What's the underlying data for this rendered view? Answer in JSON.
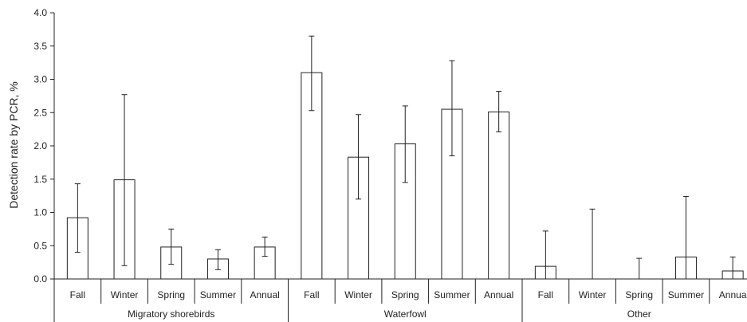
{
  "chart_data": {
    "type": "bar",
    "title": "",
    "xlabel": "",
    "ylabel": "Detection rate by PCR, %",
    "ylim": [
      0,
      4
    ],
    "yticks": [
      "0.0",
      "0.5",
      "1.0",
      "1.5",
      "2.0",
      "2.5",
      "3.0",
      "3.5",
      "4.0"
    ],
    "grid": false,
    "legend": "none",
    "bar_fill": "#ffffff",
    "bar_stroke": "#222222",
    "groups": [
      {
        "name": "Migratory shorebirds",
        "categories": [
          "Fall",
          "Winter",
          "Spring",
          "Summer",
          "Annual"
        ],
        "values": [
          0.92,
          1.49,
          0.48,
          0.3,
          0.48
        ],
        "error_low": [
          0.4,
          0.2,
          0.22,
          0.14,
          0.34
        ],
        "error_high": [
          1.43,
          2.77,
          0.75,
          0.44,
          0.63
        ]
      },
      {
        "name": "Waterfowl",
        "categories": [
          "Fall",
          "Winter",
          "Spring",
          "Summer",
          "Annual"
        ],
        "values": [
          3.1,
          1.83,
          2.03,
          2.55,
          2.51
        ],
        "error_low": [
          2.53,
          1.2,
          1.45,
          1.85,
          2.21
        ],
        "error_high": [
          3.65,
          2.47,
          2.6,
          3.28,
          2.82
        ]
      },
      {
        "name": "Other",
        "categories": [
          "Fall",
          "Winter",
          "Spring",
          "Summer",
          "Annua"
        ],
        "values": [
          0.19,
          0.0,
          0.0,
          0.33,
          0.12
        ],
        "error_low": [
          0.0,
          0.0,
          0.0,
          0.0,
          0.0
        ],
        "error_high": [
          0.72,
          1.05,
          0.31,
          1.24,
          0.33
        ]
      }
    ]
  }
}
